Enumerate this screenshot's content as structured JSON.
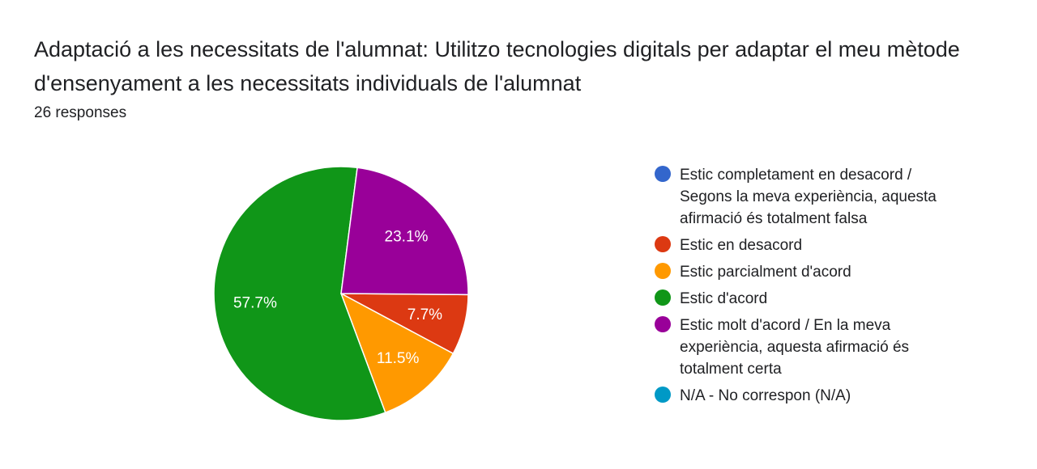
{
  "header": {
    "title": "Adaptació a les necessitats de l'alumnat: Utilitzo tecnologies digitals per adaptar el meu mètode d'ensenyament a les necessitats individuals de l'alumnat",
    "responses": "26 responses"
  },
  "chart_data": {
    "type": "pie",
    "title": "Adaptació a les necessitats de l'alumnat: Utilitzo tecnologies digitals per adaptar el meu mètode d'ensenyament a les necessitats individuals de l'alumnat",
    "total_responses": 26,
    "legend_position": "right",
    "slices": [
      {
        "label": "Estic completament en desacord / Segons la meva experiència, aquesta afirmació és totalment falsa",
        "value": 0,
        "percent_label": "",
        "color": "#3366cc"
      },
      {
        "label": "Estic en desacord",
        "value": 7.7,
        "percent_label": "7.7%",
        "color": "#dc3912"
      },
      {
        "label": "Estic parcialment d'acord",
        "value": 11.5,
        "percent_label": "11.5%",
        "color": "#ff9900"
      },
      {
        "label": "Estic d'acord",
        "value": 57.7,
        "percent_label": "57.7%",
        "color": "#109618"
      },
      {
        "label": "Estic molt d'acord / En la meva experiència, aquesta afirmació és totalment certa",
        "value": 23.1,
        "percent_label": "23.1%",
        "color": "#990099"
      },
      {
        "label": "N/A - No correspon (N/A)",
        "value": 0,
        "percent_label": "",
        "color": "#0099c6"
      }
    ]
  }
}
